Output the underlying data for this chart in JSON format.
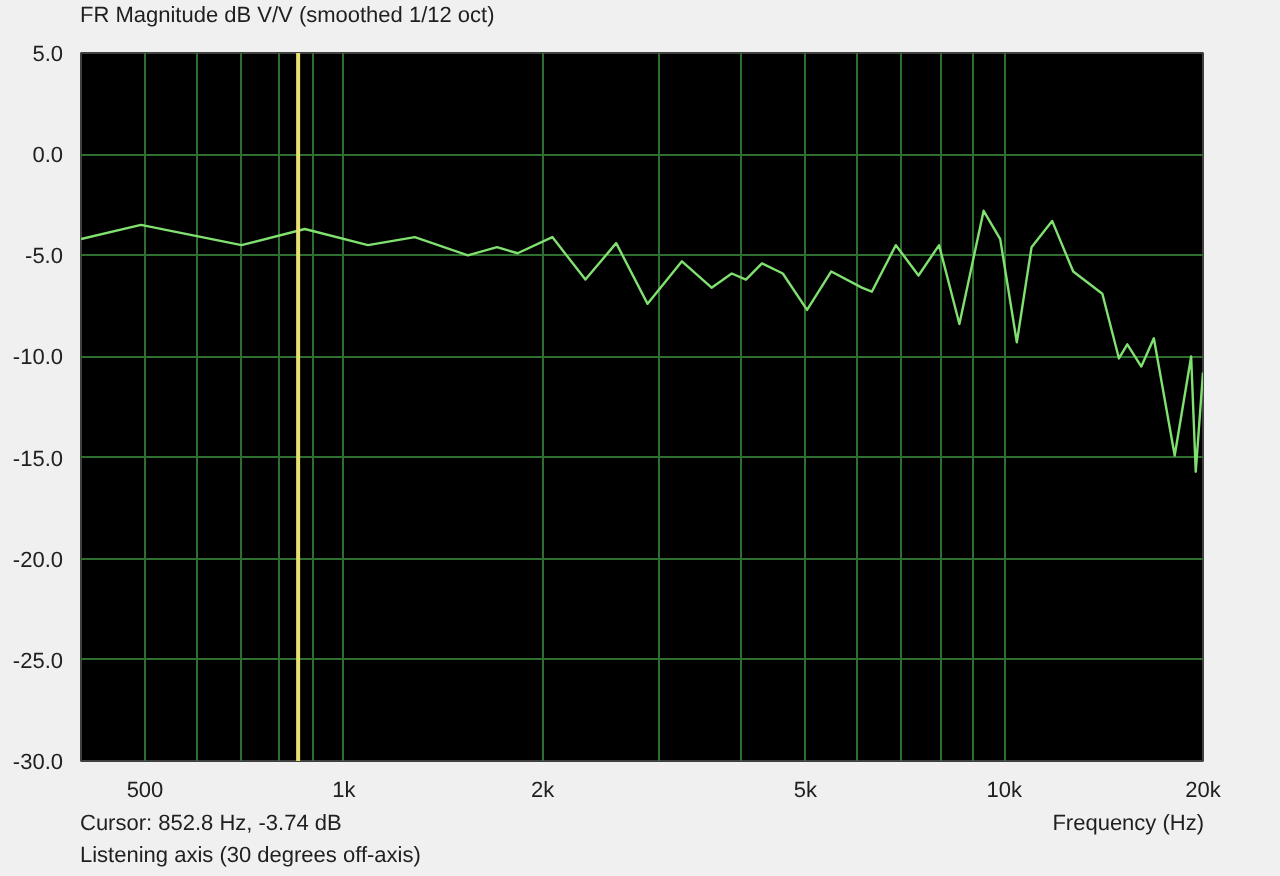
{
  "chart_data": {
    "type": "line",
    "title": "FR Magnitude dB V/V (smoothed 1/12 oct)",
    "xlabel": "Frequency (Hz)",
    "annotations": [
      "Cursor: 852.8 Hz, -3.74 dB",
      "Listening axis (30 degrees off-axis)"
    ],
    "log": "x",
    "grid": true,
    "marker": "none",
    "line_style": "solid",
    "xlim": [
      400,
      20000
    ],
    "ylim": [
      -30,
      5
    ],
    "xticks": [
      500,
      {
        "value": 600,
        "label": null
      },
      {
        "value": 700,
        "label": null
      },
      {
        "value": 800,
        "label": null
      },
      {
        "value": 900,
        "label": null
      },
      {
        "value": 1000,
        "label": "1k"
      },
      {
        "value": 2000,
        "label": "2k"
      },
      {
        "value": 3000,
        "label": null
      },
      {
        "value": 4000,
        "label": null
      },
      {
        "value": 5000,
        "label": "5k"
      },
      {
        "value": 6000,
        "label": null
      },
      {
        "value": 7000,
        "label": null
      },
      {
        "value": 8000,
        "label": null
      },
      {
        "value": 9000,
        "label": null
      },
      {
        "value": 10000,
        "label": "10k"
      },
      {
        "value": 20000,
        "label": "20k"
      }
    ],
    "yticks": [
      {
        "value": 5,
        "label": "5.0"
      },
      {
        "value": 0,
        "label": "0.0"
      },
      {
        "value": -5,
        "label": "-5.0"
      },
      {
        "value": -10,
        "label": "-10.0"
      },
      {
        "value": -15,
        "label": "-15.0"
      },
      {
        "value": -20,
        "label": "-20.0"
      },
      {
        "value": -25,
        "label": "-25.0"
      },
      {
        "value": -30,
        "label": "-30.0"
      }
    ],
    "ref_lines": [
      {
        "axis": "x",
        "value": 852.8,
        "color": "#e8e070"
      }
    ],
    "x": [
      400,
      493,
      700,
      873,
      1088,
      1281,
      1541,
      1706,
      1833,
      2069,
      2322,
      2585,
      2884,
      3251,
      3605,
      3868,
      4064,
      4297,
      4621,
      5029,
      5472,
      6087,
      6303,
      6854,
      7417,
      7969,
      8554,
      9308,
      9862,
      10450,
      11000,
      11820,
      12720,
      14080,
      14920,
      15360,
      16130,
      16850,
      18120,
      19190,
      19500,
      20000
    ],
    "series": [
      {
        "color": "#80e070",
        "values": [
          -4.2,
          -3.5,
          -4.5,
          -3.7,
          -4.5,
          -4.1,
          -5.0,
          -4.6,
          -4.9,
          -4.1,
          -6.2,
          -4.4,
          -7.4,
          -5.3,
          -6.6,
          -5.9,
          -6.2,
          -5.4,
          -5.9,
          -7.7,
          -5.8,
          -6.6,
          -6.8,
          -4.5,
          -6.0,
          -4.5,
          -8.4,
          -2.8,
          -4.2,
          -9.3,
          -4.6,
          -3.3,
          -5.8,
          -6.9,
          -10.1,
          -9.4,
          -10.5,
          -9.1,
          -14.9,
          -10.0,
          -15.7,
          -10.8
        ]
      }
    ]
  }
}
